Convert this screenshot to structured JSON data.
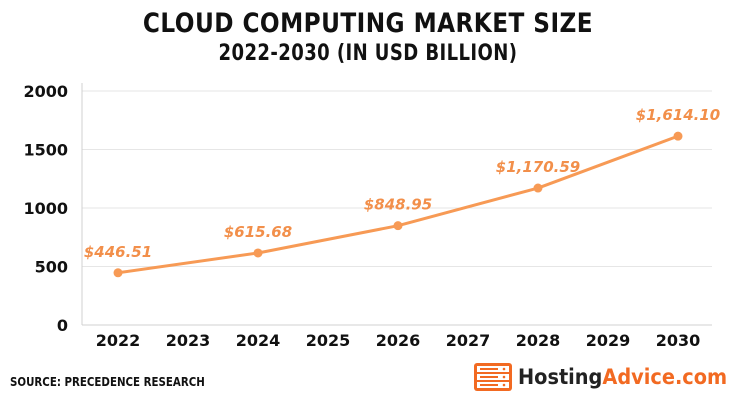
{
  "colors": {
    "line": "#f79a55",
    "label": "#f28f4a",
    "text": "#111111",
    "grid": "#e6e6e6",
    "brand_orange": "#f26a22"
  },
  "chart_data": {
    "type": "line",
    "title": "CLOUD COMPUTING MARKET SIZE",
    "subtitle": "2022-2030 (IN USD BILLION)",
    "xlabel": "",
    "ylabel": "",
    "categories": [
      "2022",
      "2023",
      "2024",
      "2025",
      "2026",
      "2027",
      "2028",
      "2029",
      "2030"
    ],
    "ylim": [
      0,
      2000
    ],
    "yticks": [
      0,
      500,
      1000,
      1500,
      2000
    ],
    "series": [
      {
        "name": "Cloud Computing Market Size",
        "x": [
          "2022",
          "2024",
          "2026",
          "2028",
          "2030"
        ],
        "values": [
          446.51,
          615.68,
          848.95,
          1170.59,
          1614.1
        ],
        "labels": [
          "$446.51",
          "$615.68",
          "$848.95",
          "$1,170.59",
          "$1,614.10"
        ]
      }
    ],
    "grid": true
  },
  "source": "SOURCE: PRECEDENCE RESEARCH",
  "brand": {
    "name_part1": "Hosting",
    "name_part2": "Advice.com",
    "logo_icon": "server-rack-icon"
  }
}
